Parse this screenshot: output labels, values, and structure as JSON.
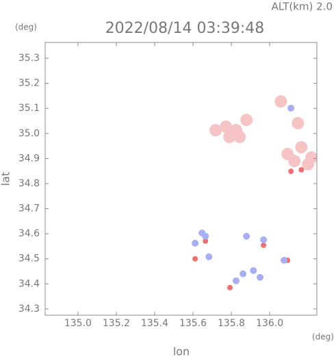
{
  "chart_data": {
    "type": "scatter",
    "title": "2022/08/14 03:39:48",
    "subtitle": "ALT(km) 2.0",
    "y_unit": "(deg)",
    "x_unit": "(deg)",
    "xlabel": "lon",
    "ylabel": "lat",
    "xlim": [
      134.829,
      136.246
    ],
    "ylim": [
      34.275,
      35.363
    ],
    "xticks": [
      {
        "value": 135,
        "label": "135.0"
      },
      135.2,
      135.4,
      135.6,
      135.8,
      {
        "value": 136,
        "label": "136.0"
      }
    ],
    "yticks": [
      34.3,
      34.4,
      34.5,
      34.6,
      34.7,
      34.8,
      34.9,
      {
        "value": 35,
        "label": "35.0"
      },
      35.1,
      35.2,
      35.3
    ],
    "series": [
      {
        "color": "#f6c4c4",
        "size": 9,
        "x": [
          135.772,
          135.825,
          135.879,
          135.79,
          135.718,
          135.843,
          136.093,
          136.165,
          136.218,
          136.129,
          136.2,
          136.058,
          136.147
        ],
        "y": [
          35.027,
          35.013,
          35.054,
          34.986,
          35.013,
          34.986,
          34.918,
          34.945,
          34.904,
          34.89,
          34.877,
          35.128,
          35.041
        ]
      },
      {
        "color": "#ec7070",
        "size": 4,
        "x": [
          135.611,
          136.111,
          136.165,
          135.793,
          136.093,
          135.665,
          135.968
        ],
        "y": [
          34.5,
          34.849,
          34.855,
          34.385,
          34.494,
          34.571,
          34.554
        ]
      },
      {
        "color": "#a8aef2",
        "size": 5,
        "x": [
          135.647,
          135.665,
          135.611,
          135.825,
          135.861,
          135.915,
          135.95,
          135.968,
          136.075,
          136.111,
          135.683,
          135.879
        ],
        "y": [
          34.603,
          34.59,
          34.562,
          34.412,
          34.44,
          34.453,
          34.426,
          34.576,
          34.494,
          35.101,
          34.508,
          34.59
        ]
      }
    ]
  }
}
